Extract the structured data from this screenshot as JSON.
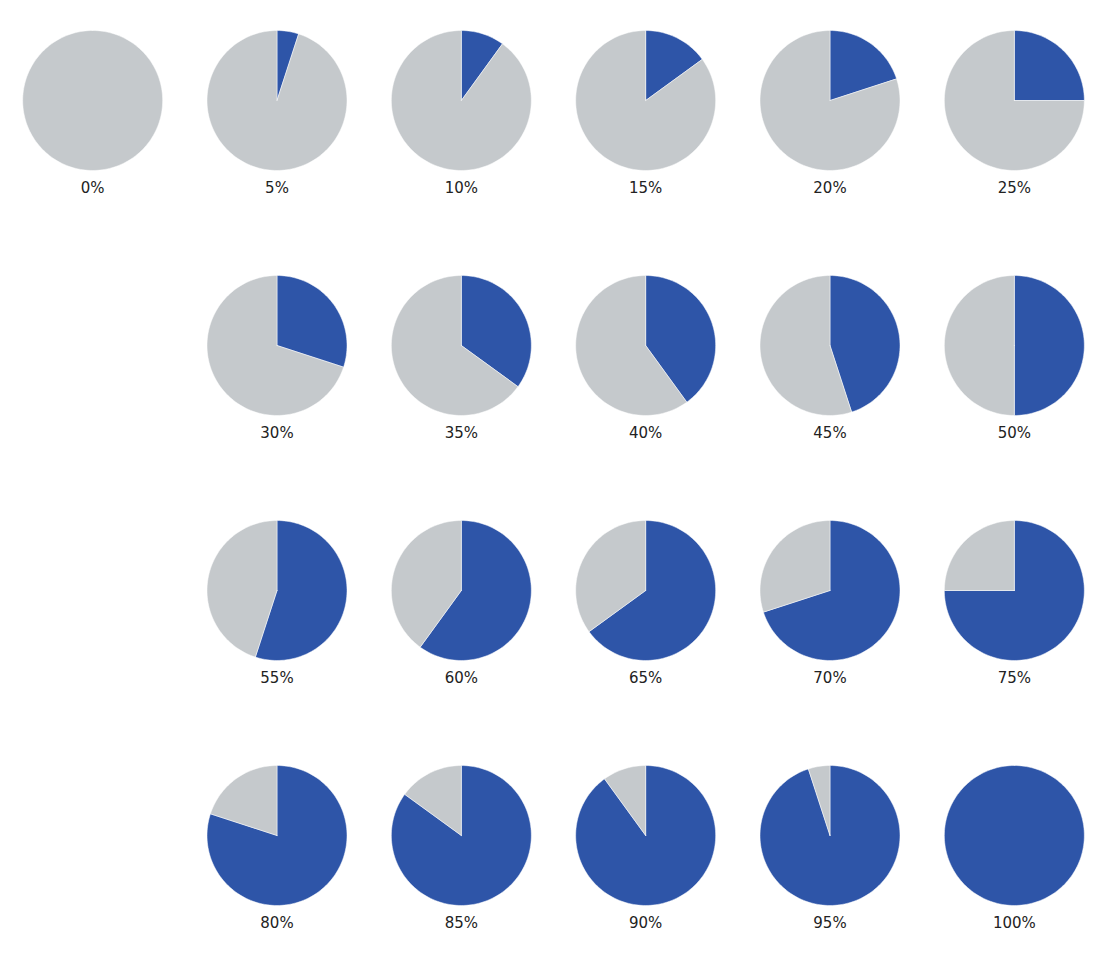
{
  "chart_data": [
    {
      "type": "pie",
      "values": [
        0,
        100
      ],
      "colors": [
        "#2E55A8",
        "#C5C9CC"
      ],
      "value_labels": [
        "0%",
        null
      ],
      "data_labels": true
    },
    {
      "type": "pie",
      "values": [
        5,
        95
      ],
      "colors": [
        "#2E55A8",
        "#C5C9CC"
      ],
      "value_labels": [
        "5%",
        null
      ],
      "data_labels": true
    },
    {
      "type": "pie",
      "values": [
        10,
        90
      ],
      "colors": [
        "#2E55A8",
        "#C5C9CC"
      ],
      "value_labels": [
        "10%",
        null
      ],
      "data_labels": true
    },
    {
      "type": "pie",
      "values": [
        15,
        85
      ],
      "colors": [
        "#2E55A8",
        "#C5C9CC"
      ],
      "value_labels": [
        "15%",
        null
      ],
      "data_labels": true
    },
    {
      "type": "pie",
      "values": [
        20,
        80
      ],
      "colors": [
        "#2E55A8",
        "#C5C9CC"
      ],
      "value_labels": [
        "20%",
        null
      ],
      "data_labels": true
    },
    {
      "type": "pie",
      "values": [
        25,
        75
      ],
      "colors": [
        "#2E55A8",
        "#C5C9CC"
      ],
      "value_labels": [
        "25%",
        null
      ],
      "data_labels": true
    },
    {
      "type": "pie",
      "values": [
        30,
        70
      ],
      "colors": [
        "#2E55A8",
        "#C5C9CC"
      ],
      "value_labels": [
        "30%",
        null
      ],
      "data_labels": true
    },
    {
      "type": "pie",
      "values": [
        35,
        65
      ],
      "colors": [
        "#2E55A8",
        "#C5C9CC"
      ],
      "value_labels": [
        "35%",
        null
      ],
      "data_labels": true
    },
    {
      "type": "pie",
      "values": [
        40,
        60
      ],
      "colors": [
        "#2E55A8",
        "#C5C9CC"
      ],
      "value_labels": [
        "40%",
        null
      ],
      "data_labels": true
    },
    {
      "type": "pie",
      "values": [
        45,
        55
      ],
      "colors": [
        "#2E55A8",
        "#C5C9CC"
      ],
      "value_labels": [
        "45%",
        null
      ],
      "data_labels": true
    },
    {
      "type": "pie",
      "values": [
        50,
        50
      ],
      "colors": [
        "#2E55A8",
        "#C5C9CC"
      ],
      "value_labels": [
        "50%",
        null
      ],
      "data_labels": true
    },
    {
      "type": "pie",
      "values": [
        55,
        45
      ],
      "colors": [
        "#2E55A8",
        "#C5C9CC"
      ],
      "value_labels": [
        "55%",
        null
      ],
      "data_labels": true
    },
    {
      "type": "pie",
      "values": [
        60,
        40
      ],
      "colors": [
        "#2E55A8",
        "#C5C9CC"
      ],
      "value_labels": [
        "60%",
        null
      ],
      "data_labels": true
    },
    {
      "type": "pie",
      "values": [
        65,
        35
      ],
      "colors": [
        "#2E55A8",
        "#C5C9CC"
      ],
      "value_labels": [
        "65%",
        null
      ],
      "data_labels": true
    },
    {
      "type": "pie",
      "values": [
        70,
        30
      ],
      "colors": [
        "#2E55A8",
        "#C5C9CC"
      ],
      "value_labels": [
        "70%",
        null
      ],
      "data_labels": true
    },
    {
      "type": "pie",
      "values": [
        75,
        25
      ],
      "colors": [
        "#2E55A8",
        "#C5C9CC"
      ],
      "value_labels": [
        "75%",
        null
      ],
      "data_labels": true
    },
    {
      "type": "pie",
      "values": [
        80,
        20
      ],
      "colors": [
        "#2E55A8",
        "#C5C9CC"
      ],
      "value_labels": [
        "80%",
        null
      ],
      "data_labels": true
    },
    {
      "type": "pie",
      "values": [
        85,
        15
      ],
      "colors": [
        "#2E55A8",
        "#C5C9CC"
      ],
      "value_labels": [
        "85%",
        null
      ],
      "data_labels": true
    },
    {
      "type": "pie",
      "values": [
        90,
        10
      ],
      "colors": [
        "#2E55A8",
        "#C5C9CC"
      ],
      "value_labels": [
        "90%",
        null
      ],
      "data_labels": true
    },
    {
      "type": "pie",
      "values": [
        95,
        5
      ],
      "colors": [
        "#2E55A8",
        "#C5C9CC"
      ],
      "value_labels": [
        "95%",
        null
      ],
      "data_labels": true
    },
    {
      "type": "pie",
      "values": [
        100,
        0
      ],
      "colors": [
        "#2E55A8",
        "#C5C9CC"
      ],
      "value_labels": [
        "100%",
        null
      ],
      "data_labels": true
    }
  ]
}
